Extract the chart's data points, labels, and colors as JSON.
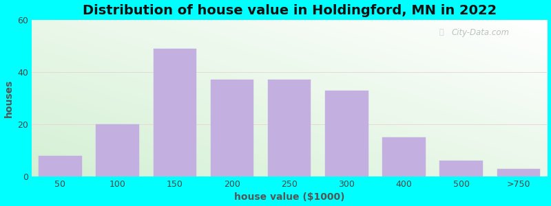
{
  "title": "Distribution of house value in Holdingford, MN in 2022",
  "xlabel": "house value ($1000)",
  "ylabel": "houses",
  "bar_labels": [
    "50",
    "100",
    "150",
    "200",
    "250",
    "300",
    "400",
    "500",
    ">750"
  ],
  "bar_heights": [
    8,
    20,
    49,
    37,
    37,
    33,
    15,
    6,
    3
  ],
  "bar_color": "#C4B0E0",
  "bar_edgecolor": "#C4B0E0",
  "ylim": [
    0,
    60
  ],
  "yticks": [
    0,
    20,
    40,
    60
  ],
  "figure_bg": "#00FFFF",
  "title_fontsize": 14,
  "axis_label_fontsize": 10,
  "watermark": "City-Data.com"
}
